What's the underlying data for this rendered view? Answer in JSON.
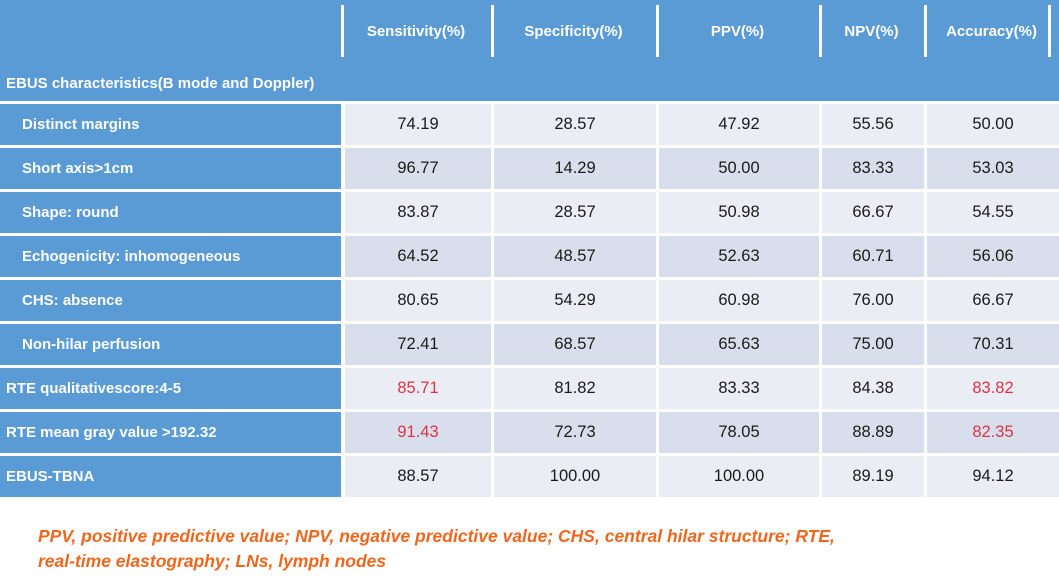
{
  "table": {
    "column_headers": [
      "Sensitivity(%)",
      "Specificity(%)",
      "PPV(%)",
      "NPV(%)",
      "Accuracy(%)"
    ],
    "section_header": "EBUS characteristics(B mode and Doppler)",
    "rows": [
      {
        "label": "Distinct margins",
        "indent": true,
        "values": [
          "74.19",
          "28.57",
          "47.92",
          "55.56",
          "50.00"
        ],
        "red_indexes": []
      },
      {
        "label": "Short axis>1cm",
        "indent": true,
        "values": [
          "96.77",
          "14.29",
          "50.00",
          "83.33",
          "53.03"
        ],
        "red_indexes": []
      },
      {
        "label": "Shape: round",
        "indent": true,
        "values": [
          "83.87",
          "28.57",
          "50.98",
          "66.67",
          "54.55"
        ],
        "red_indexes": []
      },
      {
        "label": "Echogenicity: inhomogeneous",
        "indent": true,
        "values": [
          "64.52",
          "48.57",
          "52.63",
          "60.71",
          "56.06"
        ],
        "red_indexes": []
      },
      {
        "label": "CHS: absence",
        "indent": true,
        "values": [
          "80.65",
          "54.29",
          "60.98",
          "76.00",
          "66.67"
        ],
        "red_indexes": []
      },
      {
        "label": "Non-hilar perfusion",
        "indent": true,
        "values": [
          "72.41",
          "68.57",
          "65.63",
          "75.00",
          "70.31"
        ],
        "red_indexes": []
      },
      {
        "label": "RTE qualitativescore:4-5",
        "indent": false,
        "values": [
          "85.71",
          "81.82",
          "83.33",
          "84.38",
          "83.82"
        ],
        "red_indexes": [
          0,
          4
        ]
      },
      {
        "label": "RTE mean gray value >192.32",
        "indent": false,
        "values": [
          "91.43",
          "72.73",
          "78.05",
          "88.89",
          "82.35"
        ],
        "red_indexes": [
          0,
          4
        ]
      },
      {
        "label": "EBUS-TBNA",
        "indent": false,
        "values": [
          "88.57",
          "100.00",
          "100.00",
          "89.19",
          "94.12"
        ],
        "red_indexes": []
      }
    ]
  },
  "footnote_line1": "PPV, positive predictive value; NPV, negative predictive value; CHS, central hilar structure; RTE,",
  "footnote_line2": "real-time elastography; LNs, lymph nodes",
  "colors": {
    "header_blue": "#5B9BD5",
    "row_light": "#EAEDF4",
    "row_dark": "#D8DEEB",
    "highlight_red": "#DE3345",
    "footnote_orange": "#F0661C",
    "value_text": "#1A1A1A"
  }
}
